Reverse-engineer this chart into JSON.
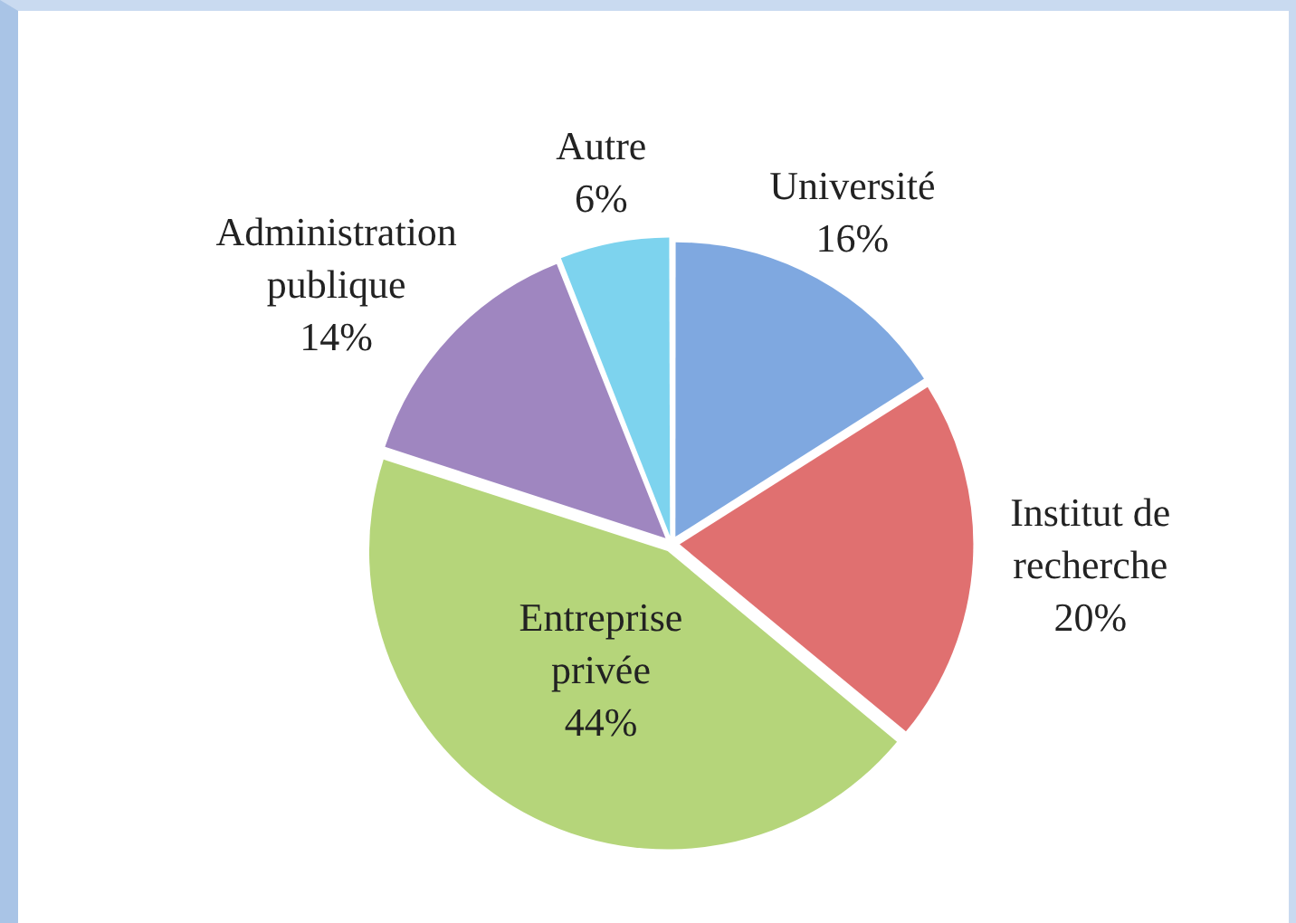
{
  "chart_data": {
    "type": "pie",
    "categories": [
      "Université",
      "Institut de recherche",
      "Entreprise privée",
      "Administration publique",
      "Autre"
    ],
    "values": [
      16,
      20,
      44,
      14,
      6
    ],
    "value_labels": [
      "16%",
      "20%",
      "44%",
      "14%",
      "6%"
    ],
    "colors": [
      "#7fa8e0",
      "#e07070",
      "#b5d57a",
      "#9f86c0",
      "#7dd3ee"
    ],
    "legend": false
  }
}
